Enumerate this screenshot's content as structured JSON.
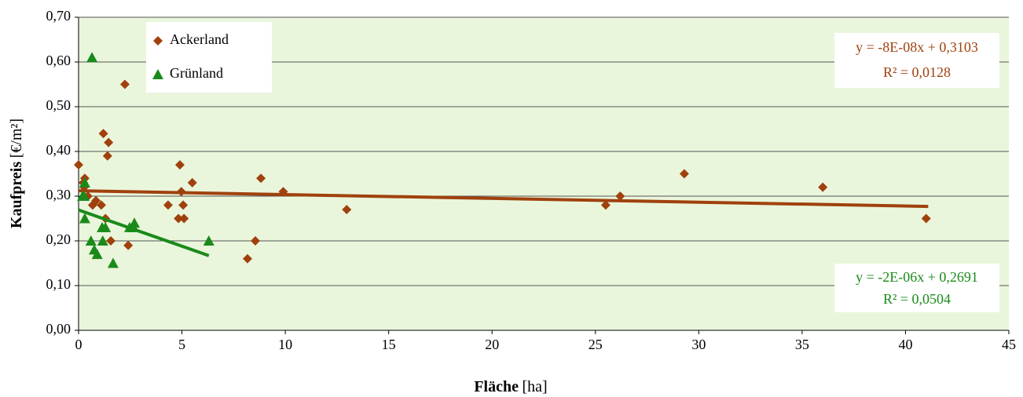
{
  "chart_data": {
    "type": "scatter",
    "xlabel": "Fläche",
    "xunit": "[ha]",
    "ylabel": "Kaufpreis",
    "yunit": "[€/m²]",
    "xlim": [
      0,
      45
    ],
    "xticks": [
      0,
      5,
      10,
      15,
      20,
      25,
      30,
      35,
      40,
      45
    ],
    "ylim": [
      0,
      0.7
    ],
    "yticks": [
      {
        "value": 0,
        "label": "0,00"
      },
      {
        "value": 0.1,
        "label": "0,10"
      },
      {
        "value": 0.2,
        "label": "0,20"
      },
      {
        "value": 0.3,
        "label": "0,30"
      },
      {
        "value": 0.4,
        "label": "0,40"
      },
      {
        "value": 0.5,
        "label": "0,50"
      },
      {
        "value": 0.6,
        "label": "0,60"
      },
      {
        "value": 0.7,
        "label": "0,70"
      }
    ],
    "grid": true,
    "legend": "upper left",
    "background": "#eaf6dc",
    "series": [
      {
        "name": "Ackerland",
        "color": "#a0410d",
        "marker": "diamond",
        "x": [
          0.0,
          0.3,
          2.24,
          1.2,
          1.45,
          1.4,
          0.27,
          0.23,
          0.45,
          0.68,
          0.84,
          1.1,
          1.3,
          1.56,
          2.4,
          4.33,
          4.9,
          4.97,
          4.83,
          5.06,
          5.1,
          5.5,
          8.17,
          8.55,
          8.82,
          9.9,
          12.97,
          25.5,
          26.2,
          29.3,
          36.0,
          41.0
        ],
        "y": [
          0.37,
          0.34,
          0.55,
          0.44,
          0.42,
          0.39,
          0.32,
          0.33,
          0.3,
          0.28,
          0.29,
          0.28,
          0.25,
          0.2,
          0.19,
          0.28,
          0.37,
          0.31,
          0.25,
          0.28,
          0.25,
          0.33,
          0.16,
          0.2,
          0.34,
          0.31,
          0.27,
          0.28,
          0.3,
          0.35,
          0.32,
          0.25
        ],
        "trendline": {
          "x": [
            0,
            41.1
          ],
          "y": [
            0.312,
            0.277
          ]
        },
        "equation": "y = -8E-08x + 0,3103",
        "r2": "R² = 0,0128"
      },
      {
        "name": "Grünland",
        "color": "#1a8a1a",
        "marker": "triangle",
        "x": [
          0.65,
          0.3,
          0.27,
          0.19,
          0.3,
          0.6,
          0.76,
          0.9,
          1.17,
          1.14,
          1.3,
          1.67,
          2.47,
          2.66,
          2.7,
          6.3
        ],
        "y": [
          0.61,
          0.33,
          0.3,
          0.3,
          0.25,
          0.2,
          0.18,
          0.17,
          0.2,
          0.23,
          0.23,
          0.15,
          0.23,
          0.23,
          0.24,
          0.2
        ],
        "trendline": {
          "x": [
            0,
            6.3
          ],
          "y": [
            0.269,
            0.167
          ]
        },
        "equation": "y = -2E-06x + 0,2691",
        "r2": "R² = 0,0504"
      }
    ]
  }
}
